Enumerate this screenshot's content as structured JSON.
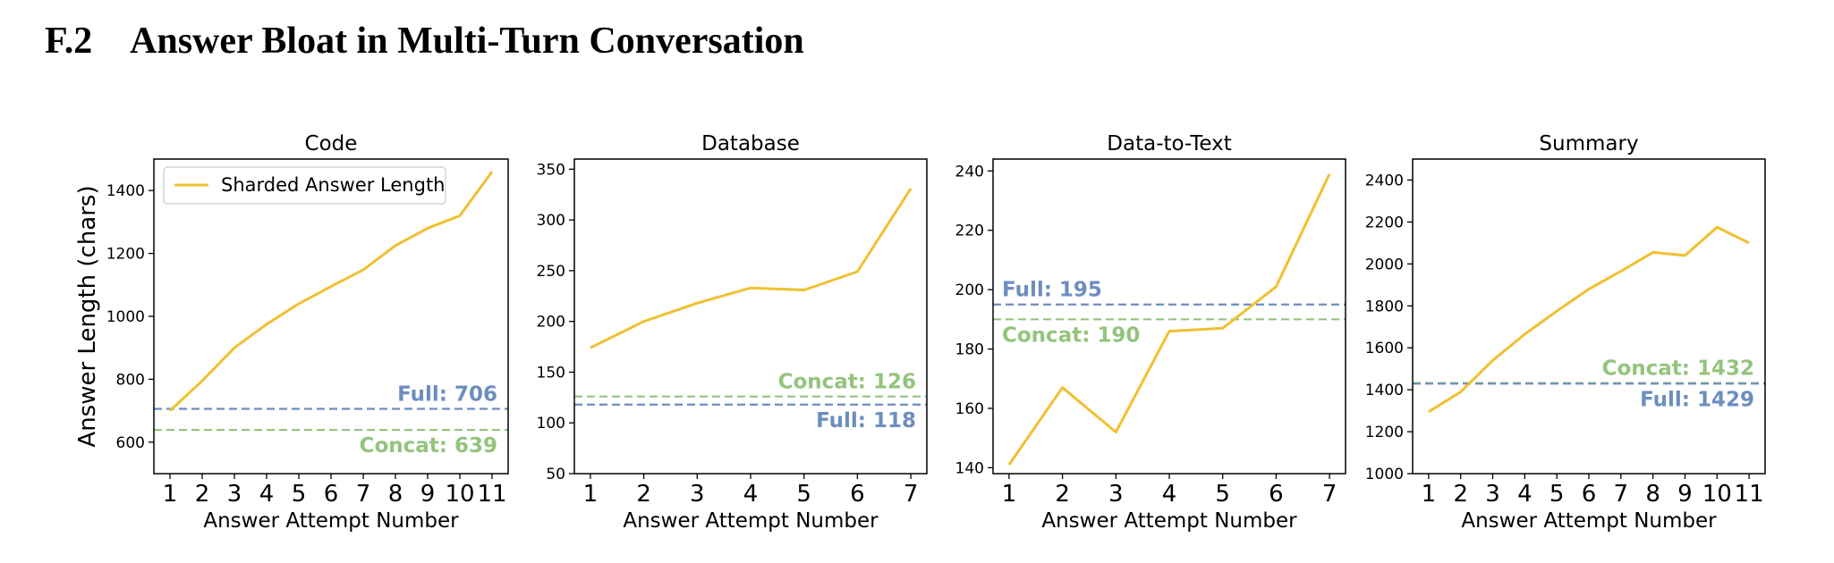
{
  "section": {
    "number": "F.2",
    "title": "Answer Bloat in Multi-Turn Conversation"
  },
  "colors": {
    "sharded": "#f0c030",
    "full": "#6c8ebf",
    "concat": "#93c47d"
  },
  "chart_data": [
    {
      "type": "line",
      "title": "Code",
      "xlabel": "Answer Attempt Number",
      "ylabel": "Answer Length (chars)",
      "x": [
        1,
        2,
        3,
        4,
        5,
        6,
        7,
        8,
        9,
        10,
        11
      ],
      "xlim": [
        0.5,
        11.5
      ],
      "ylim": [
        500,
        1500
      ],
      "yticks": [
        600,
        800,
        1000,
        1200,
        1400
      ],
      "legend": {
        "placement": "upper-left",
        "label": "Sharded Answer Length"
      },
      "series": [
        {
          "name": "Sharded Answer Length",
          "values": [
            700,
            795,
            900,
            975,
            1040,
            1095,
            1148,
            1225,
            1280,
            1320,
            1460
          ]
        }
      ],
      "reference_lines": [
        {
          "kind": "full",
          "value": 706,
          "label": "Full: 706",
          "label_pos": "above-right"
        },
        {
          "kind": "concat",
          "value": 639,
          "label": "Concat: 639",
          "label_pos": "below-right"
        }
      ]
    },
    {
      "type": "line",
      "title": "Database",
      "xlabel": "Answer Attempt Number",
      "ylabel": "",
      "x": [
        1,
        2,
        3,
        4,
        5,
        6,
        7
      ],
      "xlim": [
        0.7,
        7.3
      ],
      "ylim": [
        50,
        360
      ],
      "yticks": [
        50,
        100,
        150,
        200,
        250,
        300,
        350
      ],
      "series": [
        {
          "name": "Sharded Answer Length",
          "values": [
            174,
            200,
            218,
            233,
            231,
            249,
            331
          ]
        }
      ],
      "reference_lines": [
        {
          "kind": "concat",
          "value": 126,
          "label": "Concat: 126",
          "label_pos": "above-right"
        },
        {
          "kind": "full",
          "value": 118,
          "label": "Full: 118",
          "label_pos": "below-right"
        }
      ]
    },
    {
      "type": "line",
      "title": "Data-to-Text",
      "xlabel": "Answer Attempt Number",
      "ylabel": "",
      "x": [
        1,
        2,
        3,
        4,
        5,
        6,
        7
      ],
      "xlim": [
        0.7,
        7.3
      ],
      "ylim": [
        138,
        244
      ],
      "yticks": [
        140,
        160,
        180,
        200,
        220,
        240
      ],
      "series": [
        {
          "name": "Sharded Answer Length",
          "values": [
            141,
            167,
            152,
            186,
            187,
            201,
            239
          ]
        }
      ],
      "reference_lines": [
        {
          "kind": "full",
          "value": 195,
          "label": "Full: 195",
          "label_pos": "above-left"
        },
        {
          "kind": "concat",
          "value": 190,
          "label": "Concat: 190",
          "label_pos": "below-left"
        }
      ]
    },
    {
      "type": "line",
      "title": "Summary",
      "xlabel": "Answer Attempt Number",
      "ylabel": "",
      "x": [
        1,
        2,
        3,
        4,
        5,
        6,
        7,
        8,
        9,
        10,
        11
      ],
      "xlim": [
        0.5,
        11.5
      ],
      "ylim": [
        1000,
        2500
      ],
      "yticks": [
        1000,
        1200,
        1400,
        1600,
        1800,
        2000,
        2200,
        2400
      ],
      "series": [
        {
          "name": "Sharded Answer Length",
          "values": [
            1295,
            1390,
            1540,
            1665,
            1775,
            1880,
            1965,
            2055,
            2040,
            2175,
            2100
          ]
        }
      ],
      "reference_lines": [
        {
          "kind": "concat",
          "value": 1432,
          "label": "Concat: 1432",
          "label_pos": "above-right"
        },
        {
          "kind": "full",
          "value": 1429,
          "label": "Full: 1429",
          "label_pos": "below-right"
        }
      ]
    }
  ]
}
